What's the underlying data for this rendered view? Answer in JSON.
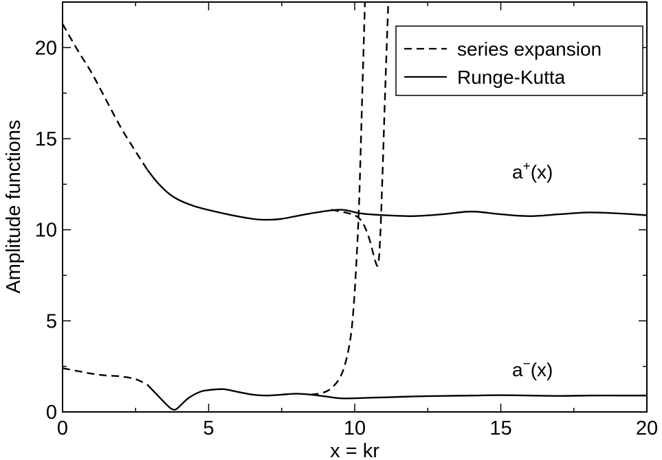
{
  "chart_data": {
    "type": "line",
    "xlabel": "x = kr",
    "ylabel": "Amplitude functions",
    "xlim": [
      0,
      20
    ],
    "ylim": [
      0,
      22.5
    ],
    "xticks": [
      0,
      5,
      10,
      15,
      20
    ],
    "yticks": [
      0,
      5,
      10,
      15,
      20
    ],
    "xtick_labels": [
      "0",
      "5",
      "10",
      "15",
      "20"
    ],
    "ytick_labels": [
      "0",
      "5",
      "10",
      "15",
      "20"
    ],
    "legend": {
      "placement": "top-right",
      "entries": [
        {
          "label": "series expansion",
          "style": "dashed"
        },
        {
          "label": "Runge-Kutta",
          "style": "solid"
        }
      ]
    },
    "annotations": [
      {
        "base": "a",
        "sup": "+",
        "tail": "(x)",
        "x": 14.5,
        "y": 12.8
      },
      {
        "base": "a",
        "sup": "−",
        "tail": "(x)",
        "x": 14.5,
        "y": 2.2
      }
    ],
    "series": [
      {
        "style": "dashed",
        "color": "#000000",
        "x": [
          0,
          0.5,
          1,
          1.5,
          2,
          2.5,
          2.9
        ],
        "y": [
          21.3,
          19.9,
          18.6,
          17.1,
          15.6,
          14.3,
          13.3
        ]
      },
      {
        "style": "solid",
        "color": "#000000",
        "x": [
          2.9,
          3.3,
          3.8,
          4.5,
          5.5,
          6.5,
          7,
          7.5,
          8.5,
          9.5,
          10.2,
          11,
          12,
          13,
          14,
          15,
          16,
          17,
          18,
          19,
          20
        ],
        "y": [
          13.3,
          12.5,
          11.8,
          11.3,
          10.9,
          10.6,
          10.55,
          10.6,
          10.9,
          11.1,
          10.9,
          10.8,
          10.75,
          10.85,
          11.0,
          10.85,
          10.75,
          10.85,
          10.95,
          10.9,
          10.8
        ]
      },
      {
        "style": "dashed",
        "color": "#000000",
        "x": [
          9.2,
          9.8,
          10.1,
          10.3,
          10.5,
          10.7,
          10.8,
          10.87,
          10.95,
          11.05,
          11.15
        ],
        "y": [
          11.1,
          10.9,
          10.7,
          10.3,
          9.5,
          8.3,
          8.1,
          9.5,
          13.0,
          18.0,
          22.5
        ]
      },
      {
        "style": "dashed",
        "color": "#000000",
        "x": [
          0,
          0.5,
          1,
          1.5,
          2,
          2.5,
          2.9
        ],
        "y": [
          2.4,
          2.25,
          2.1,
          2.0,
          1.95,
          1.8,
          1.5
        ]
      },
      {
        "style": "solid",
        "color": "#000000",
        "x": [
          2.9,
          3.2,
          3.5,
          3.7,
          3.85,
          4.0,
          4.3,
          4.7,
          5.0,
          5.5,
          6.0,
          6.5,
          7.0,
          7.5,
          8.0,
          8.5,
          9.0,
          9.5,
          10.0,
          10.5,
          11.0,
          12.0,
          13.0,
          14.0,
          15.0,
          16.0,
          17.0,
          18.0,
          19.0,
          20.0
        ],
        "y": [
          1.5,
          1.0,
          0.5,
          0.2,
          0.12,
          0.3,
          0.75,
          1.1,
          1.2,
          1.25,
          1.1,
          0.95,
          0.9,
          0.95,
          1.0,
          0.95,
          0.85,
          0.75,
          0.75,
          0.78,
          0.8,
          0.85,
          0.88,
          0.9,
          0.92,
          0.9,
          0.88,
          0.9,
          0.9,
          0.9
        ]
      },
      {
        "style": "dashed",
        "color": "#000000",
        "x": [
          8.5,
          8.9,
          9.2,
          9.5,
          9.7,
          9.85,
          9.95,
          10.05,
          10.15,
          10.25,
          10.35
        ],
        "y": [
          0.95,
          1.05,
          1.3,
          1.9,
          2.8,
          4.0,
          5.5,
          8.0,
          11.5,
          17.0,
          22.5
        ]
      }
    ]
  }
}
